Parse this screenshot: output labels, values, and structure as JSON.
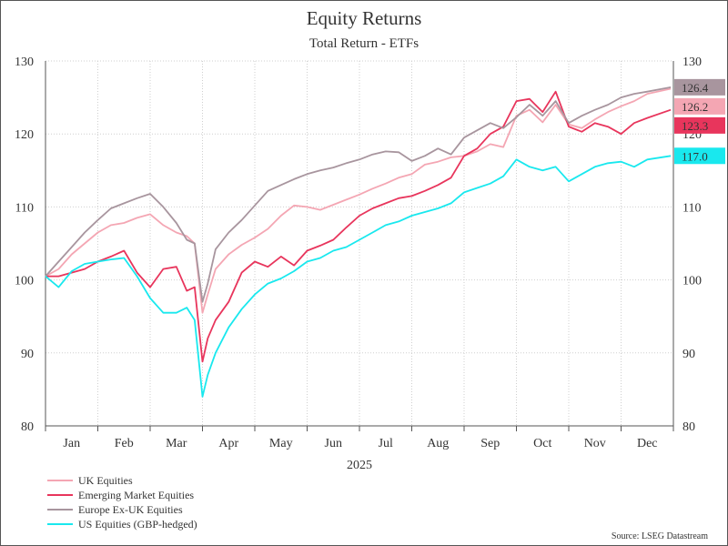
{
  "chart_data": {
    "type": "line",
    "title": "Equity Returns",
    "subtitle": "Total Return - ETFs",
    "xlabel": "2025",
    "ylabel": "",
    "ylim": [
      80,
      130
    ],
    "yticks": [
      80,
      90,
      100,
      110,
      120,
      130
    ],
    "x_categories": [
      "Jan",
      "Feb",
      "Mar",
      "Apr",
      "May",
      "Jun",
      "Jul",
      "Aug",
      "Sep",
      "Oct",
      "Nov",
      "Dec"
    ],
    "x_points": [
      0,
      0.25,
      0.5,
      0.75,
      1.0,
      1.25,
      1.5,
      1.75,
      2.0,
      2.25,
      2.5,
      2.7,
      2.85,
      3.0,
      3.1,
      3.25,
      3.5,
      3.75,
      4.0,
      4.25,
      4.5,
      4.75,
      5.0,
      5.25,
      5.5,
      5.75,
      6.0,
      6.25,
      6.5,
      6.75,
      7.0,
      7.25,
      7.5,
      7.75,
      8.0,
      8.25,
      8.5,
      8.75,
      9.0,
      9.25,
      9.5,
      9.75,
      10.0,
      10.25,
      10.5,
      10.75,
      11.0,
      11.25,
      11.5,
      11.95
    ],
    "grid": true,
    "legend_position": "bottom-left",
    "source": "Source: LSEG Datastream",
    "series": [
      {
        "name": "UK Equities",
        "color": "#f4a6b3",
        "end_label": "126.2",
        "values": [
          100.5,
          101.5,
          103.5,
          105.0,
          106.5,
          107.5,
          107.8,
          108.5,
          109.0,
          107.5,
          106.5,
          106.0,
          105.0,
          95.5,
          98.0,
          101.5,
          103.5,
          104.8,
          105.8,
          107.0,
          108.8,
          110.2,
          110.0,
          109.6,
          110.3,
          111.0,
          111.7,
          112.5,
          113.2,
          114.0,
          114.5,
          115.8,
          116.2,
          116.8,
          117.0,
          117.6,
          118.6,
          118.2,
          122.5,
          123.3,
          121.6,
          124.0,
          121.3,
          120.8,
          122.0,
          123.0,
          123.8,
          124.5,
          125.5,
          126.2
        ]
      },
      {
        "name": "Emerging Market Equities",
        "color": "#e8355c",
        "end_label": "123.3",
        "values": [
          100.5,
          100.5,
          101.0,
          101.5,
          102.5,
          103.2,
          104.0,
          101.0,
          99.0,
          101.5,
          101.8,
          98.5,
          99.0,
          88.8,
          92.0,
          94.5,
          97.0,
          101.0,
          102.5,
          101.8,
          103.2,
          102.0,
          104.0,
          104.7,
          105.5,
          107.2,
          108.8,
          109.8,
          110.5,
          111.2,
          111.5,
          112.2,
          113.0,
          114.0,
          117.0,
          118.0,
          120.0,
          121.0,
          124.5,
          124.8,
          123.0,
          125.8,
          121.0,
          120.3,
          121.5,
          121.0,
          120.0,
          121.5,
          122.2,
          123.3
        ]
      },
      {
        "name": "Europe Ex-UK Equities",
        "color": "#a8959e",
        "end_label": "126.4",
        "values": [
          100.5,
          102.5,
          104.5,
          106.5,
          108.2,
          109.8,
          110.5,
          111.2,
          111.8,
          110.0,
          107.8,
          105.5,
          105.0,
          97.0,
          99.5,
          104.2,
          106.5,
          108.2,
          110.2,
          112.2,
          113.0,
          113.8,
          114.5,
          115.0,
          115.4,
          116.0,
          116.5,
          117.2,
          117.6,
          117.5,
          116.3,
          117.0,
          118.0,
          117.2,
          119.5,
          120.5,
          121.5,
          120.8,
          122.3,
          124.0,
          122.5,
          124.5,
          121.5,
          122.5,
          123.3,
          124.0,
          125.0,
          125.5,
          125.8,
          126.4
        ]
      },
      {
        "name": "US Equities (GBP-hedged)",
        "color": "#19e8ee",
        "end_label": "117.0",
        "values": [
          100.5,
          99.0,
          101.2,
          102.2,
          102.5,
          102.8,
          103.0,
          100.5,
          97.5,
          95.5,
          95.5,
          96.2,
          94.5,
          84.0,
          87.0,
          90.0,
          93.5,
          96.0,
          98.0,
          99.5,
          100.2,
          101.2,
          102.5,
          103.0,
          104.0,
          104.5,
          105.5,
          106.5,
          107.5,
          108.0,
          108.8,
          109.3,
          109.8,
          110.5,
          112.0,
          112.6,
          113.2,
          114.2,
          116.5,
          115.5,
          115.0,
          115.5,
          113.5,
          114.5,
          115.5,
          116.0,
          116.2,
          115.5,
          116.5,
          117.0
        ]
      }
    ]
  }
}
